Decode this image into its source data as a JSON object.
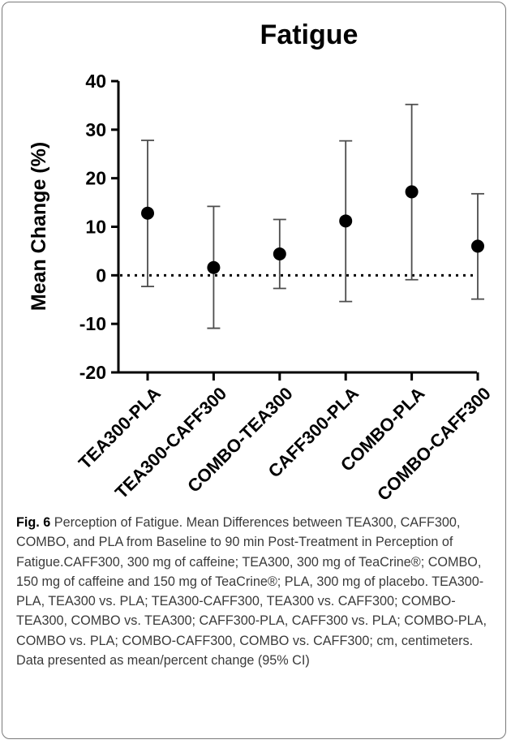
{
  "caption": {
    "label": "Fig. 6",
    "text": "Perception of Fatigue. Mean Differences between TEA300, CAFF300, COMBO, and PLA from Baseline to 90 min Post-Treatment in Perception of Fatigue.CAFF300, 300 mg of caffeine; TEA300, 300 mg of TeaCrine®; COMBO, 150 mg of caffeine and 150 mg of TeaCrine®; PLA, 300 mg of placebo. TEA300-PLA, TEA300 vs. PLA; TEA300-CAFF300, TEA300 vs. CAFF300; COMBO-TEA300, COMBO vs. TEA300; CAFF300-PLA, CAFF300 vs. PLA; COMBO-PLA, COMBO vs. PLA; COMBO-CAFF300, COMBO vs. CAFF300; cm, centimeters. Data presented as mean/percent change (95% CI)"
  },
  "chart_data": {
    "type": "scatter",
    "title": "Fatigue",
    "xlabel": "",
    "ylabel": "Mean Change (%)",
    "ylim": [
      -20,
      40
    ],
    "yticks": [
      -20,
      -10,
      0,
      10,
      20,
      30,
      40
    ],
    "reference_line": 0,
    "grid": false,
    "categories": [
      "TEA300-PLA",
      "TEA300-CAFF300",
      "COMBO-TEA300",
      "CAFF300-PLA",
      "COMBO-PLA",
      "COMBO-CAFF300"
    ],
    "series": [
      {
        "values": [
          12.8,
          1.6,
          4.4,
          11.2,
          17.2,
          6.0
        ],
        "ci_low": [
          -2.3,
          -10.9,
          -2.7,
          -5.4,
          -0.9,
          -4.9
        ],
        "ci_high": [
          27.8,
          14.2,
          11.5,
          27.7,
          35.2,
          16.8
        ]
      }
    ],
    "colors": {
      "marker": "#000000",
      "errorbar": "#4d4d4d",
      "axis": "#000000"
    }
  }
}
